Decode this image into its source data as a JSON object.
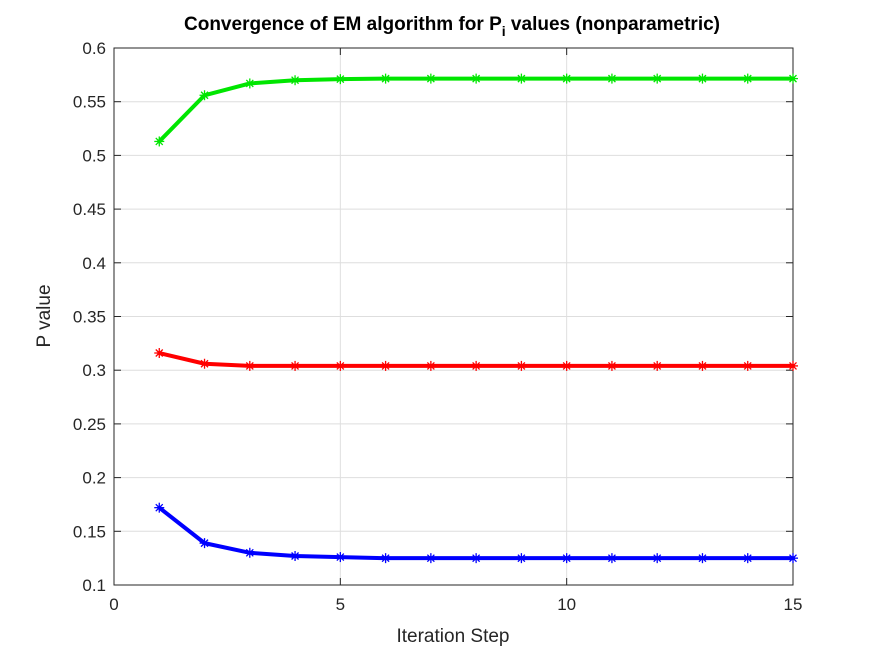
{
  "chart_data": {
    "type": "line",
    "title": "Convergence of EM algorithm for P",
    "title_subscript": "i",
    "title_suffix": " values (nonparametric)",
    "xlabel": "Iteration Step",
    "ylabel": "P value",
    "xlim": [
      0,
      15
    ],
    "ylim": [
      0.1,
      0.6
    ],
    "xticks": [
      0,
      5,
      10,
      15
    ],
    "yticks": [
      0.1,
      0.15,
      0.2,
      0.25,
      0.3,
      0.35,
      0.4,
      0.45,
      0.5,
      0.55,
      0.6
    ],
    "grid": true,
    "marker": "asterisk",
    "x": [
      1,
      2,
      3,
      4,
      5,
      6,
      7,
      8,
      9,
      10,
      11,
      12,
      13,
      14,
      15
    ],
    "series": [
      {
        "color": "#00e600",
        "values": [
          0.513,
          0.556,
          0.567,
          0.57,
          0.571,
          0.5715,
          0.5715,
          0.5715,
          0.5715,
          0.5715,
          0.5715,
          0.5715,
          0.5715,
          0.5715,
          0.5715
        ]
      },
      {
        "color": "#ff0000",
        "values": [
          0.316,
          0.306,
          0.304,
          0.304,
          0.304,
          0.304,
          0.304,
          0.304,
          0.304,
          0.304,
          0.304,
          0.304,
          0.304,
          0.304,
          0.304
        ]
      },
      {
        "color": "#0000ff",
        "values": [
          0.172,
          0.139,
          0.13,
          0.127,
          0.126,
          0.125,
          0.125,
          0.125,
          0.125,
          0.125,
          0.125,
          0.125,
          0.125,
          0.125,
          0.125
        ]
      }
    ]
  }
}
